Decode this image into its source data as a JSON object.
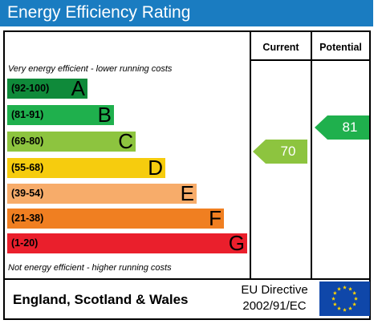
{
  "title": "Energy Efficiency Rating",
  "columns": {
    "current": "Current",
    "potential": "Potential"
  },
  "notes": {
    "top": "Very energy efficient - lower running costs",
    "bottom": "Not energy efficient - higher running costs"
  },
  "bands": [
    {
      "range": "(92-100)",
      "letter": "A",
      "color": "#0f8a3a"
    },
    {
      "range": "(81-91)",
      "letter": "B",
      "color": "#1fb04d"
    },
    {
      "range": "(69-80)",
      "letter": "C",
      "color": "#8dc43f"
    },
    {
      "range": "(55-68)",
      "letter": "D",
      "color": "#f6cc0e"
    },
    {
      "range": "(39-54)",
      "letter": "E",
      "color": "#f7ac6a"
    },
    {
      "range": "(21-38)",
      "letter": "F",
      "color": "#f07f21"
    },
    {
      "range": "(1-20)",
      "letter": "G",
      "color": "#ea1f2c"
    }
  ],
  "ratings": {
    "current": {
      "value": "70",
      "band": "C",
      "color": "#8dc43f"
    },
    "potential": {
      "value": "81",
      "band": "B",
      "color": "#1fb04d"
    }
  },
  "footer": {
    "country": "England, Scotland & Wales",
    "directive_line1": "EU Directive",
    "directive_line2": "2002/91/EC",
    "flag_color": "#0f47a9",
    "star_color": "#ffd500"
  }
}
